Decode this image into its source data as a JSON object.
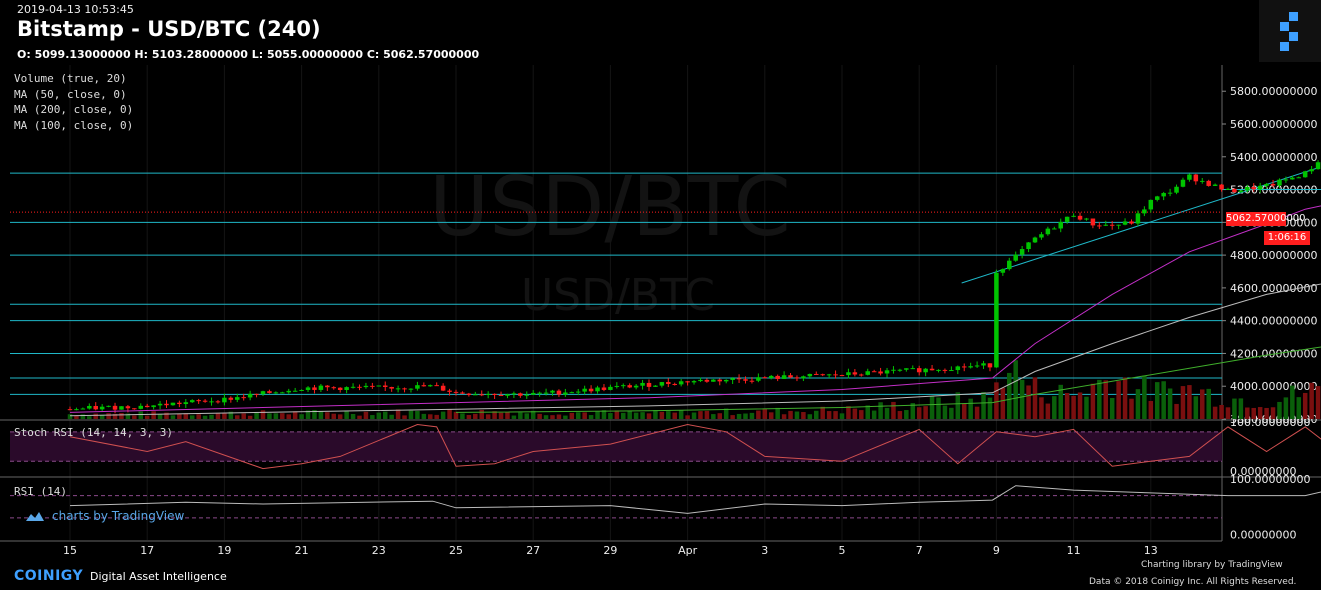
{
  "header": {
    "timestamp": "2019-04-13 10:53:45",
    "title": "Bitstamp - USD/BTC (240)",
    "ohlc": "O: 5099.13000000 H: 5103.28000000 L: 5055.00000000 C: 5062.57000000"
  },
  "indicators": [
    "Volume (true, 20)",
    "MA (50, close, 0)",
    "MA (200, close, 0)",
    "MA (100, close, 0)"
  ],
  "panes": {
    "stoch_label": "Stoch RSI (14, 14, 3, 3)",
    "rsi_label": "RSI (14)"
  },
  "watermark": {
    "symbol": "USD/BTC",
    "tradingview": "charts by TradingView"
  },
  "footer": {
    "brand": "COINIGY",
    "tagline": "Digital Asset Intelligence",
    "charting": "Charting library by",
    "charting_brand": "TradingView",
    "copyright": "Data © 2018 Coinigy Inc. All Rights Reserved."
  },
  "last_price": {
    "value": "5062.57000000",
    "countdown": "1:06:16"
  },
  "colors": {
    "up": "#00c400",
    "down": "#ff1e1e",
    "level": "#1fb8c8",
    "ma50": "#c22fc7",
    "ma100": "#bbbbbb",
    "ma200": "#3fae2b",
    "accent": "#3ea0ff"
  },
  "chart_data": {
    "type": "candlestick",
    "x_ticks": [
      "15",
      "17",
      "19",
      "21",
      "23",
      "25",
      "27",
      "29",
      "Apr",
      "3",
      "5",
      "7",
      "9",
      "11",
      "13"
    ],
    "price_axis": {
      "ticks": [
        "3800.00000000",
        "4000.00000000",
        "4200.00000000",
        "4400.00000000",
        "4600.00000000",
        "4800.00000000",
        "5000.00000000",
        "5200.00000000",
        "5400.00000000",
        "5600.00000000",
        "5800.00000000"
      ],
      "ylim": [
        3800,
        5960
      ]
    },
    "stoch_axis": {
      "ticks": [
        "0.00000000",
        "100.00000000"
      ],
      "ylim": [
        -10,
        100
      ]
    },
    "rsi_axis": {
      "ticks": [
        "0.00000000",
        "100.00000000"
      ],
      "ylim": [
        -10,
        100
      ]
    },
    "horizontal_levels": [
      3950,
      4050,
      4200,
      4400,
      4500,
      4800,
      5000,
      5300
    ],
    "short_levels": [
      {
        "price": 5200,
        "from": 34.0
      }
    ],
    "trendline": {
      "x": [
        24.1,
        33.3
      ],
      "y": [
        4630,
        5330
      ]
    },
    "last_price_line": 5062.57,
    "key_points": {
      "x": [
        0,
        2,
        4,
        6,
        8,
        9.4,
        10,
        12,
        14,
        16,
        18,
        20,
        22,
        23.9,
        24,
        24.4,
        25,
        26,
        26.5,
        27,
        27.5,
        28,
        28.5,
        29,
        30,
        31,
        32,
        32.5,
        32.8,
        33,
        33.2,
        33.5,
        34,
        35,
        36,
        36.2
      ],
      "close": [
        3860,
        3880,
        3920,
        3990,
        3990,
        4000,
        3960,
        3950,
        3990,
        4030,
        4050,
        4070,
        4100,
        4130,
        4700,
        4770,
        4900,
        5050,
        4990,
        4980,
        5000,
        5130,
        5190,
        5280,
        5190,
        5220,
        5300,
        5400,
        5160,
        5100,
        5040,
        5030,
        5070,
        5100,
        5090,
        5062
      ]
    },
    "ma50": {
      "x": [
        0,
        5,
        10,
        15,
        20,
        23.9,
        25,
        27,
        29,
        31,
        32,
        33,
        35,
        36.2
      ],
      "y": [
        3840,
        3870,
        3900,
        3930,
        3980,
        4050,
        4260,
        4560,
        4820,
        4990,
        5080,
        5130,
        5140,
        5140
      ]
    },
    "ma100": {
      "x": [
        0,
        5,
        10,
        15,
        20,
        23.9,
        25,
        27,
        29,
        31,
        33,
        35,
        36.2
      ],
      "y": [
        3820,
        3840,
        3860,
        3880,
        3910,
        3960,
        4090,
        4260,
        4420,
        4560,
        4650,
        4720,
        4760
      ]
    },
    "ma200": {
      "x": [
        10,
        15,
        20,
        23.9,
        25,
        27,
        29,
        31,
        33,
        35,
        36.2
      ],
      "y": [
        3840,
        3850,
        3870,
        3900,
        3950,
        4030,
        4110,
        4190,
        4260,
        4320,
        4350
      ]
    },
    "stoch_rsi": {
      "x": [
        0,
        2,
        3,
        5,
        6,
        7,
        9,
        9.5,
        10,
        11,
        12,
        14,
        16,
        17,
        18,
        20,
        22,
        23,
        24,
        25,
        26,
        27,
        28,
        29,
        30,
        31,
        32,
        33,
        34,
        35,
        36,
        36.2
      ],
      "y": [
        70,
        40,
        60,
        5,
        15,
        30,
        95,
        90,
        10,
        15,
        40,
        55,
        95,
        80,
        30,
        20,
        85,
        15,
        80,
        70,
        85,
        10,
        20,
        30,
        90,
        40,
        90,
        30,
        5,
        10,
        25,
        40
      ]
    },
    "rsi": {
      "x": [
        0,
        3,
        5,
        9.4,
        10,
        14,
        16,
        18,
        20,
        22,
        23.9,
        24.5,
        26,
        28,
        30,
        32,
        32.5,
        33,
        34,
        36,
        36.2
      ],
      "y": [
        52,
        58,
        55,
        60,
        48,
        52,
        38,
        55,
        52,
        58,
        62,
        88,
        80,
        75,
        70,
        70,
        78,
        45,
        44,
        46,
        40
      ]
    },
    "volume": {
      "x": [
        0,
        5,
        10,
        15,
        20,
        23.9,
        24.2,
        25,
        26,
        27,
        28,
        29,
        30,
        31,
        32,
        32.8,
        33.5,
        35,
        36.2
      ],
      "y": [
        0.08,
        0.1,
        0.12,
        0.1,
        0.15,
        0.35,
        0.95,
        0.5,
        0.4,
        0.7,
        0.45,
        0.5,
        0.35,
        0.3,
        0.45,
        0.55,
        0.4,
        0.3,
        0.25
      ]
    }
  }
}
